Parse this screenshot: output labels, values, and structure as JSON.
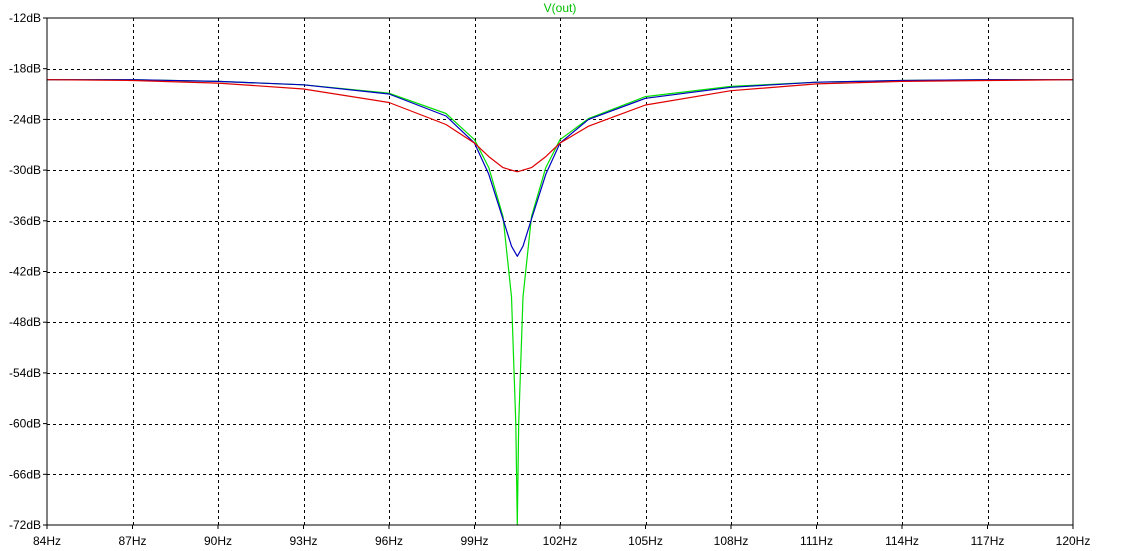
{
  "chart_data": {
    "type": "line",
    "title": "V(out)",
    "xlabel": "",
    "ylabel": "",
    "grid": true,
    "xlim": [
      84,
      120
    ],
    "ylim": [
      -72,
      -12
    ],
    "xticks": [
      84,
      87,
      90,
      93,
      96,
      99,
      102,
      105,
      108,
      111,
      114,
      117,
      120
    ],
    "xticklabels": [
      "84Hz",
      "87Hz",
      "90Hz",
      "93Hz",
      "96Hz",
      "99Hz",
      "102Hz",
      "105Hz",
      "108Hz",
      "111Hz",
      "114Hz",
      "117Hz",
      "120Hz"
    ],
    "yticks": [
      -12,
      -18,
      -24,
      -30,
      -36,
      -42,
      -48,
      -54,
      -60,
      -66,
      -72
    ],
    "yticklabels": [
      "-12dB",
      "-18dB",
      "-24dB",
      "-30dB",
      "-36dB",
      "-42dB",
      "-48dB",
      "-54dB",
      "-60dB",
      "-66dB",
      "-72dB"
    ],
    "series": [
      {
        "color": "#00e000",
        "x": [
          84,
          87,
          90,
          93,
          96,
          98,
          99,
          99.5,
          100,
          100.3,
          100.45,
          100.5,
          100.55,
          100.7,
          101,
          101.5,
          102,
          103,
          105,
          108,
          111,
          114,
          117,
          120
        ],
        "y": [
          -19.3,
          -19.3,
          -19.5,
          -19.9,
          -20.9,
          -23.3,
          -26.4,
          -29.7,
          -35.5,
          -45,
          -60,
          -72,
          -60,
          -45,
          -35.5,
          -29.7,
          -26.4,
          -23.9,
          -21.3,
          -20.1,
          -19.6,
          -19.4,
          -19.3,
          -19.3
        ]
      },
      {
        "color": "#0000c0",
        "x": [
          84,
          87,
          90,
          93,
          96,
          98,
          99,
          99.5,
          100,
          100.3,
          100.5,
          100.7,
          101,
          101.5,
          102,
          103,
          105,
          108,
          111,
          114,
          117,
          120
        ],
        "y": [
          -19.3,
          -19.3,
          -19.5,
          -19.9,
          -21.0,
          -23.6,
          -26.8,
          -30.5,
          -35.8,
          -39.0,
          -40.2,
          -39.0,
          -35.8,
          -30.5,
          -26.8,
          -24.0,
          -21.5,
          -20.2,
          -19.6,
          -19.4,
          -19.3,
          -19.3
        ]
      },
      {
        "color": "#e00000",
        "x": [
          84,
          87,
          90,
          93,
          96,
          98,
          99,
          99.5,
          100,
          100.5,
          101,
          101.5,
          102,
          103,
          105,
          108,
          111,
          114,
          117,
          120
        ],
        "y": [
          -19.3,
          -19.4,
          -19.7,
          -20.4,
          -22.0,
          -24.6,
          -26.8,
          -28.4,
          -29.7,
          -30.2,
          -29.7,
          -28.4,
          -26.8,
          -24.8,
          -22.3,
          -20.6,
          -19.8,
          -19.5,
          -19.4,
          -19.3
        ]
      }
    ]
  }
}
